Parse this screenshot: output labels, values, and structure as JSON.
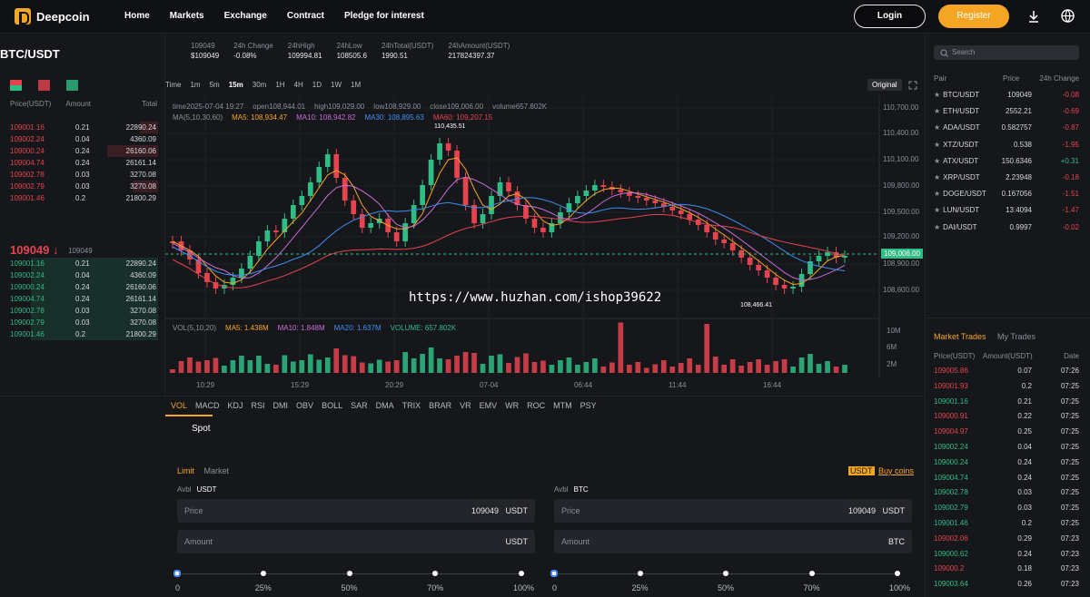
{
  "header": {
    "logo": "Deepcoin",
    "nav": [
      "Home",
      "Markets",
      "Exchange",
      "Contract",
      "Pledge for interest"
    ],
    "login": "Login",
    "register": "Register"
  },
  "pair": "BTC/USDT",
  "ticker": [
    {
      "label": "109049",
      "value": "$109049",
      "label_class": "red",
      "value_class": "white"
    },
    {
      "label": "24h Change",
      "value": "-0.08%",
      "value_class": "red"
    },
    {
      "label": "24hHigh",
      "value": "109994.81"
    },
    {
      "label": "24hLow",
      "value": "108505.6"
    },
    {
      "label": "24hTotal(USDT)",
      "value": "1990.51"
    },
    {
      "label": "24hAmount(USDT)",
      "value": "217824397.37"
    }
  ],
  "orderbook": {
    "headers": [
      "Price(USDT)",
      "Amount",
      "Total"
    ],
    "asks": [
      [
        "109001.16",
        "0.21",
        "22890.24"
      ],
      [
        "109002.24",
        "0.04",
        "4360.09"
      ],
      [
        "109000.24",
        "0.24",
        "26160.06"
      ],
      [
        "109004.74",
        "0.24",
        "26161.14"
      ],
      [
        "109002.78",
        "0.03",
        "3270.08"
      ],
      [
        "109002.79",
        "0.03",
        "3270.08"
      ],
      [
        "109001.46",
        "0.2",
        "21800.29"
      ]
    ],
    "last_price": "109049 ↓",
    "last_sub": "109049",
    "bids": [
      [
        "109001.16",
        "0.21",
        "22890.24"
      ],
      [
        "109002.24",
        "0.04",
        "4360.09"
      ],
      [
        "109000.24",
        "0.24",
        "26160.06"
      ],
      [
        "109004.74",
        "0.24",
        "26161.14"
      ],
      [
        "109002.78",
        "0.03",
        "3270.08"
      ],
      [
        "109002.79",
        "0.03",
        "3270.08"
      ],
      [
        "109001.46",
        "0.2",
        "21800.29"
      ]
    ]
  },
  "chart": {
    "timeframes": [
      "Time",
      "1m",
      "5m",
      "15m",
      "30m",
      "1H",
      "4H",
      "1D",
      "1W",
      "1M"
    ],
    "active_timeframe": "15m",
    "original_btn": "Original",
    "info": [
      "time2025-07-04 19:27",
      "open108,944.01",
      "high109,029.00",
      "low108,929.00",
      "close109,006.00",
      "volume657.802K"
    ],
    "ma_label": "MA(5,10,30,60)",
    "ma": [
      {
        "text": "MA5: 108,934.47",
        "color": "#f5a524"
      },
      {
        "text": "MA10: 108,942.82",
        "color": "#c86cd6"
      },
      {
        "text": "MA30: 108,895.63",
        "color": "#3d8ff0"
      },
      {
        "text": "MA60: 109,207.15",
        "color": "#e5444f"
      }
    ],
    "y_ticks": [
      "110,700.00",
      "110,400.00",
      "110,100.00",
      "109,800.00",
      "109,500.00",
      "109,200.00",
      "108,900.00",
      "108,600.00"
    ],
    "current_price": "109,006.00",
    "high_mark": "110,435.51",
    "low_mark": "108,466.41",
    "x_ticks": [
      "10:29",
      "15:29",
      "20:29",
      "07-04",
      "06:44",
      "11:44",
      "16:44"
    ],
    "vol_label": "VOL(5,10,20)",
    "vol_info": [
      {
        "text": "MA5: 1.438M",
        "color": "#f5a524"
      },
      {
        "text": "MA10: 1.848M",
        "color": "#c86cd6"
      },
      {
        "text": "MA20: 1.637M",
        "color": "#3d8ff0"
      },
      {
        "text": "VOLUME: 657.802K",
        "color": "#2ebd85"
      }
    ],
    "vol_ticks": [
      "10M",
      "6M",
      "2M"
    ],
    "indicators": [
      "VOL",
      "MACD",
      "KDJ",
      "RSI",
      "DMI",
      "OBV",
      "BOLL",
      "SAR",
      "DMA",
      "TRIX",
      "BRAR",
      "VR",
      "EMV",
      "WR",
      "ROC",
      "MTM",
      "PSY"
    ]
  },
  "watermark": "https://www.huzhan.com/ishop39622",
  "pairs_panel": {
    "search_placeholder": "Search",
    "headers": [
      "Pair",
      "Price",
      "24h Change"
    ],
    "rows": [
      [
        "BTC/USDT",
        "109049",
        "-0.08"
      ],
      [
        "ETH/USDT",
        "2552.21",
        "-0.69"
      ],
      [
        "ADA/USDT",
        "0.582757",
        "-0.87"
      ],
      [
        "XTZ/USDT",
        "0.538",
        "-1.95"
      ],
      [
        "ATX/USDT",
        "150.6346",
        "+0.31"
      ],
      [
        "XRP/USDT",
        "2.23948",
        "-0.18"
      ],
      [
        "DOGE/USDT",
        "0.167056",
        "-1.51"
      ],
      [
        "LUN/USDT",
        "13.4094",
        "-1.47"
      ],
      [
        "DAI/USDT",
        "0.9997",
        "-0.02"
      ]
    ]
  },
  "market_trades": {
    "tabs": [
      "Market Trades",
      "My Trades"
    ],
    "headers": [
      "Price(USDT)",
      "Amount(USDT)",
      "Date"
    ],
    "rows": [
      [
        "109005.86",
        "0.07",
        "07:26",
        "red"
      ],
      [
        "109001.93",
        "0.2",
        "07:25",
        "red"
      ],
      [
        "109001.16",
        "0.21",
        "07:25",
        "green"
      ],
      [
        "109000.91",
        "0.22",
        "07:25",
        "red"
      ],
      [
        "109004.97",
        "0.25",
        "07:25",
        "red"
      ],
      [
        "109002.24",
        "0.04",
        "07:25",
        "green"
      ],
      [
        "109000.24",
        "0.24",
        "07:25",
        "green"
      ],
      [
        "109004.74",
        "0.24",
        "07:25",
        "green"
      ],
      [
        "109002.78",
        "0.03",
        "07:25",
        "green"
      ],
      [
        "109002.79",
        "0.03",
        "07:25",
        "green"
      ],
      [
        "109001.46",
        "0.2",
        "07:25",
        "green"
      ],
      [
        "109002.06",
        "0.29",
        "07:23",
        "red"
      ],
      [
        "109000.62",
        "0.24",
        "07:23",
        "green"
      ],
      [
        "109000.2",
        "0.18",
        "07:23",
        "red"
      ],
      [
        "109003.64",
        "0.26",
        "07:23",
        "green"
      ]
    ]
  },
  "trade": {
    "spot": "Spot",
    "tab_limit": "Limit",
    "tab_market": "Market",
    "buy_badge": "USDT",
    "buy_coins": "Buy coins",
    "left": {
      "avbl": "Avbl",
      "avbl_unit": "USDT",
      "price_label": "Price",
      "price_value": "109049",
      "price_unit": "USDT",
      "amount_label": "Amount",
      "amount_unit": "USDT"
    },
    "right": {
      "avbl": "Avbl",
      "avbl_unit": "BTC",
      "price_label": "Price",
      "price_value": "109049",
      "price_unit": "USDT",
      "amount_label": "Amount",
      "amount_unit": "BTC"
    },
    "percents": [
      "0",
      "25%",
      "50%",
      "70%",
      "100%"
    ]
  },
  "colors": {
    "up": "#2ebd85",
    "down": "#e5444f",
    "accent": "#f5a524",
    "bg": "#16171b"
  }
}
